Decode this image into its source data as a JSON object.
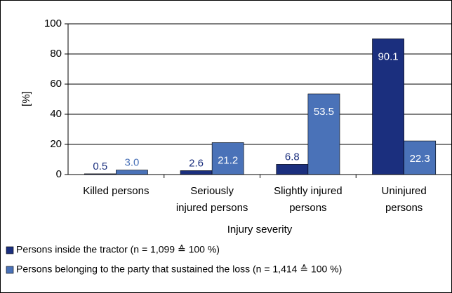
{
  "chart_data": {
    "type": "bar",
    "y_label": "[%]",
    "x_label": "Injury severity",
    "categories": [
      [
        "Killed persons"
      ],
      [
        "Seriously",
        "injured persons"
      ],
      [
        "Slightly injured",
        "persons"
      ],
      [
        "Uninjured",
        "persons"
      ]
    ],
    "series": [
      {
        "name": "Persons inside the tractor (n = 1,099 ≙ 100 %)",
        "color": "#1b2f7e",
        "values": [
          0.5,
          2.6,
          6.8,
          90.1
        ],
        "value_labels": [
          "0.5",
          "2.6",
          "6.8",
          "90.1"
        ]
      },
      {
        "name": "Persons belonging to the party that sustained the loss (n = 1,414 ≙ 100 %)",
        "color": "#4a72b8",
        "values": [
          3.0,
          21.2,
          53.5,
          22.3
        ],
        "value_labels": [
          "3.0",
          "21.2",
          "53.5",
          "22.3"
        ]
      }
    ],
    "ylim": [
      0,
      100
    ],
    "yticks": [
      0,
      20,
      40,
      60,
      80,
      100
    ],
    "grid": true,
    "legend": "bottom"
  }
}
